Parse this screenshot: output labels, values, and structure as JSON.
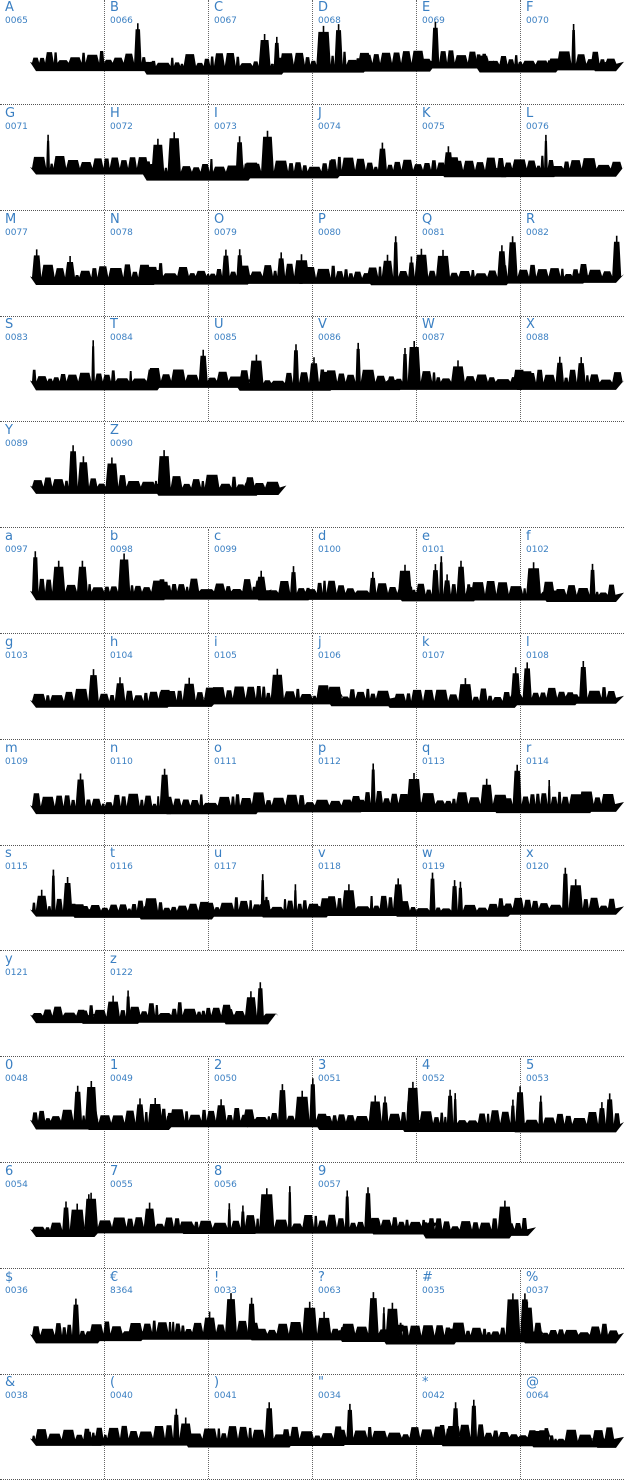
{
  "palette": {
    "label": "#3a7fc2",
    "silhouette": "#000000",
    "rule": "#555555"
  },
  "rows": [
    {
      "ship_icon": "warship-silhouette-icon",
      "span": 6,
      "glyphs": [
        {
          "char": "A",
          "code": "0065"
        },
        {
          "char": "B",
          "code": "0066"
        },
        {
          "char": "C",
          "code": "0067"
        },
        {
          "char": "D",
          "code": "0068"
        },
        {
          "char": "E",
          "code": "0069"
        },
        {
          "char": "F",
          "code": "0070"
        }
      ]
    },
    {
      "ship_icon": "warship-silhouette-icon",
      "span": 6,
      "glyphs": [
        {
          "char": "G",
          "code": "0071"
        },
        {
          "char": "H",
          "code": "0072"
        },
        {
          "char": "I",
          "code": "0073"
        },
        {
          "char": "J",
          "code": "0074"
        },
        {
          "char": "K",
          "code": "0075"
        },
        {
          "char": "L",
          "code": "0076"
        }
      ]
    },
    {
      "ship_icon": "warship-silhouette-icon",
      "span": 6,
      "glyphs": [
        {
          "char": "M",
          "code": "0077"
        },
        {
          "char": "N",
          "code": "0078"
        },
        {
          "char": "O",
          "code": "0079"
        },
        {
          "char": "P",
          "code": "0080"
        },
        {
          "char": "Q",
          "code": "0081"
        },
        {
          "char": "R",
          "code": "0082"
        }
      ]
    },
    {
      "ship_icon": "warship-silhouette-icon",
      "span": 6,
      "glyphs": [
        {
          "char": "S",
          "code": "0083"
        },
        {
          "char": "T",
          "code": "0084"
        },
        {
          "char": "U",
          "code": "0085"
        },
        {
          "char": "V",
          "code": "0086"
        },
        {
          "char": "W",
          "code": "0087"
        },
        {
          "char": "X",
          "code": "0088"
        }
      ]
    },
    {
      "ship_icon": "warship-silhouette-icon",
      "span": 2.6,
      "glyphs": [
        {
          "char": "Y",
          "code": "0089"
        },
        {
          "char": "Z",
          "code": "0090"
        }
      ]
    },
    {
      "ship_icon": "warship-silhouette-icon",
      "span": 6,
      "glyphs": [
        {
          "char": "a",
          "code": "0097"
        },
        {
          "char": "b",
          "code": "0098"
        },
        {
          "char": "c",
          "code": "0099"
        },
        {
          "char": "d",
          "code": "0100"
        },
        {
          "char": "e",
          "code": "0101"
        },
        {
          "char": "f",
          "code": "0102"
        }
      ]
    },
    {
      "ship_icon": "warship-silhouette-icon",
      "span": 6,
      "glyphs": [
        {
          "char": "g",
          "code": "0103"
        },
        {
          "char": "h",
          "code": "0104"
        },
        {
          "char": "i",
          "code": "0105"
        },
        {
          "char": "j",
          "code": "0106"
        },
        {
          "char": "k",
          "code": "0107"
        },
        {
          "char": "l",
          "code": "0108"
        }
      ]
    },
    {
      "ship_icon": "warship-silhouette-icon",
      "span": 6,
      "glyphs": [
        {
          "char": "m",
          "code": "0109"
        },
        {
          "char": "n",
          "code": "0110"
        },
        {
          "char": "o",
          "code": "0111"
        },
        {
          "char": "p",
          "code": "0112"
        },
        {
          "char": "q",
          "code": "0113"
        },
        {
          "char": "r",
          "code": "0114"
        }
      ]
    },
    {
      "ship_icon": "warship-silhouette-icon",
      "span": 6,
      "glyphs": [
        {
          "char": "s",
          "code": "0115"
        },
        {
          "char": "t",
          "code": "0116"
        },
        {
          "char": "u",
          "code": "0117"
        },
        {
          "char": "v",
          "code": "0118"
        },
        {
          "char": "w",
          "code": "0119"
        },
        {
          "char": "x",
          "code": "0120"
        }
      ]
    },
    {
      "ship_icon": "warship-silhouette-icon",
      "span": 2.5,
      "glyphs": [
        {
          "char": "y",
          "code": "0121"
        },
        {
          "char": "z",
          "code": "0122"
        }
      ]
    },
    {
      "ship_icon": "warship-silhouette-icon",
      "span": 6,
      "glyphs": [
        {
          "char": "0",
          "code": "0048"
        },
        {
          "char": "1",
          "code": "0049"
        },
        {
          "char": "2",
          "code": "0050"
        },
        {
          "char": "3",
          "code": "0051"
        },
        {
          "char": "4",
          "code": "0052"
        },
        {
          "char": "5",
          "code": "0053"
        }
      ]
    },
    {
      "ship_icon": "warship-silhouette-icon",
      "span": 5,
      "glyphs": [
        {
          "char": "6",
          "code": "0054"
        },
        {
          "char": "7",
          "code": "0055"
        },
        {
          "char": "8",
          "code": "0056"
        },
        {
          "char": "9",
          "code": "0057"
        }
      ]
    },
    {
      "ship_icon": "warship-silhouette-icon",
      "span": 6,
      "glyphs": [
        {
          "char": "$",
          "code": "0036"
        },
        {
          "char": "€",
          "code": "8364"
        },
        {
          "char": "!",
          "code": "0033"
        },
        {
          "char": "?",
          "code": "0063"
        },
        {
          "char": "#",
          "code": "0035"
        },
        {
          "char": "%",
          "code": "0037"
        }
      ]
    },
    {
      "ship_icon": "warship-silhouette-icon",
      "span": 6,
      "glyphs": [
        {
          "char": "&",
          "code": "0038"
        },
        {
          "char": "(",
          "code": "0040"
        },
        {
          "char": ")",
          "code": "0041"
        },
        {
          "char": "\"",
          "code": "0034"
        },
        {
          "char": "*",
          "code": "0042"
        },
        {
          "char": "@",
          "code": "0064"
        }
      ]
    }
  ]
}
